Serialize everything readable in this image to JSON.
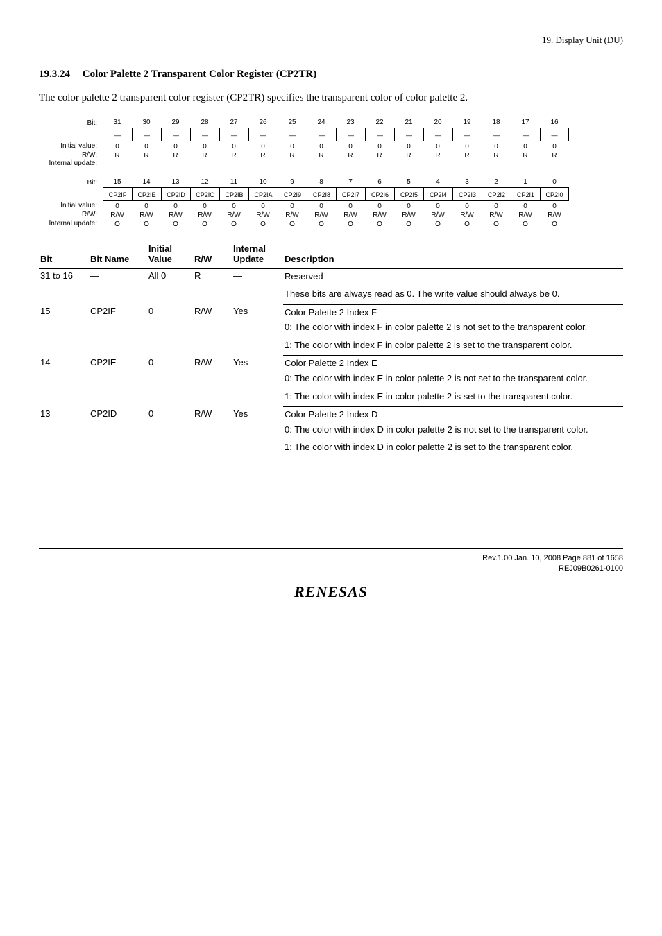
{
  "header": {
    "text": "19.   Display Unit (DU)"
  },
  "section": {
    "number": "19.3.24",
    "title": "Color Palette 2 Transparent Color Register (CP2TR)",
    "intro": "The color palette 2 transparent color register (CP2TR) specifies the transparent color of color palette 2."
  },
  "reg_labels": {
    "bit": "Bit:",
    "initial": "Initial value:",
    "rw": "R/W:",
    "update": "Internal update:"
  },
  "reg_upper": {
    "bits": [
      "31",
      "30",
      "29",
      "28",
      "27",
      "26",
      "25",
      "24",
      "23",
      "22",
      "21",
      "20",
      "19",
      "18",
      "17",
      "16"
    ],
    "names": [
      "—",
      "—",
      "—",
      "—",
      "—",
      "—",
      "—",
      "—",
      "—",
      "—",
      "—",
      "—",
      "—",
      "—",
      "—",
      "—"
    ],
    "initial": [
      "0",
      "0",
      "0",
      "0",
      "0",
      "0",
      "0",
      "0",
      "0",
      "0",
      "0",
      "0",
      "0",
      "0",
      "0",
      "0"
    ],
    "rw": [
      "R",
      "R",
      "R",
      "R",
      "R",
      "R",
      "R",
      "R",
      "R",
      "R",
      "R",
      "R",
      "R",
      "R",
      "R",
      "R"
    ],
    "update": [
      "",
      "",
      "",
      "",
      "",
      "",
      "",
      "",
      "",
      "",
      "",
      "",
      "",
      "",
      "",
      ""
    ]
  },
  "reg_lower": {
    "bits": [
      "15",
      "14",
      "13",
      "12",
      "11",
      "10",
      "9",
      "8",
      "7",
      "6",
      "5",
      "4",
      "3",
      "2",
      "1",
      "0"
    ],
    "names": [
      "CP2IF",
      "CP2IE",
      "CP2ID",
      "CP2IC",
      "CP2IB",
      "CP2IA",
      "CP2I9",
      "CP2I8",
      "CP2I7",
      "CP2I6",
      "CP2I5",
      "CP2I4",
      "CP2I3",
      "CP2I2",
      "CP2I1",
      "CP2I0"
    ],
    "initial": [
      "0",
      "0",
      "0",
      "0",
      "0",
      "0",
      "0",
      "0",
      "0",
      "0",
      "0",
      "0",
      "0",
      "0",
      "0",
      "0"
    ],
    "rw": [
      "R/W",
      "R/W",
      "R/W",
      "R/W",
      "R/W",
      "R/W",
      "R/W",
      "R/W",
      "R/W",
      "R/W",
      "R/W",
      "R/W",
      "R/W",
      "R/W",
      "R/W",
      "R/W"
    ],
    "update": [
      "O",
      "O",
      "O",
      "O",
      "O",
      "O",
      "O",
      "O",
      "O",
      "O",
      "O",
      "O",
      "O",
      "O",
      "O",
      "O"
    ]
  },
  "table": {
    "headers": {
      "bit": "Bit",
      "name": "Bit Name",
      "initial_l1": "Initial",
      "initial_l2": "Value",
      "rw": "R/W",
      "update_l1": "Internal",
      "update_l2": "Update",
      "desc": "Description"
    },
    "col_widths": {
      "bit": "72px",
      "name": "84px",
      "initial": "66px",
      "rw": "56px",
      "update": "74px",
      "desc": "auto"
    },
    "rows": [
      {
        "bit": "31 to 16",
        "name": "—",
        "initial": "All 0",
        "rw": "R",
        "update": "—",
        "desc": [
          "Reserved",
          "These bits are always read as 0. The write value should always be 0."
        ]
      },
      {
        "bit": "15",
        "name": "CP2IF",
        "initial": "0",
        "rw": "R/W",
        "update": "Yes",
        "desc": [
          "Color Palette 2 Index F",
          "0: The color with index F in color palette 2 is not set to the transparent color.",
          "1: The color with index F in color palette 2 is set to the transparent color."
        ]
      },
      {
        "bit": "14",
        "name": "CP2IE",
        "initial": "0",
        "rw": "R/W",
        "update": "Yes",
        "desc": [
          "Color Palette 2 Index E",
          "0: The color with index E in color palette 2 is not set to the transparent color.",
          "1: The color with index E in color palette 2 is set to the transparent color."
        ]
      },
      {
        "bit": "13",
        "name": "CP2ID",
        "initial": "0",
        "rw": "R/W",
        "update": "Yes",
        "desc": [
          "Color Palette 2 Index D",
          "0: The color with index D in color palette 2 is not set to the transparent color.",
          "1: The color with index D in color palette 2 is set to the transparent color."
        ]
      }
    ]
  },
  "footer": {
    "line1": "Rev.1.00  Jan. 10, 2008  Page 881 of 1658",
    "line2": "REJ09B0261-0100",
    "logo": "RENESAS"
  }
}
